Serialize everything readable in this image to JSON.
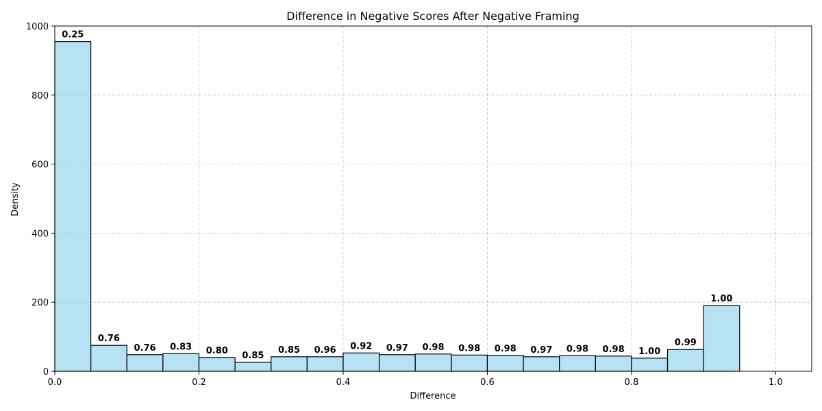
{
  "chart_data": {
    "type": "bar",
    "title": "Difference in Negative Scores After Negative Framing",
    "xlabel": "Difference",
    "ylabel": "Density",
    "xlim": [
      0,
      1.05
    ],
    "ylim": [
      0,
      1000
    ],
    "x_ticks": [
      "0.0",
      "0.2",
      "0.4",
      "0.6",
      "0.8",
      "1.0"
    ],
    "x_tick_values": [
      0,
      0.2,
      0.4,
      0.6,
      0.8,
      1.0
    ],
    "y_ticks": [
      "0",
      "200",
      "400",
      "600",
      "800",
      "1000"
    ],
    "y_tick_values": [
      0,
      200,
      400,
      600,
      800,
      1000
    ],
    "grid": true,
    "bins": [
      {
        "x0": 0.0,
        "x1": 0.05,
        "value": 955,
        "label": "0.25"
      },
      {
        "x0": 0.05,
        "x1": 0.1,
        "value": 75,
        "label": "0.76"
      },
      {
        "x0": 0.1,
        "x1": 0.15,
        "value": 48,
        "label": "0.76"
      },
      {
        "x0": 0.15,
        "x1": 0.2,
        "value": 51,
        "label": "0.83"
      },
      {
        "x0": 0.2,
        "x1": 0.25,
        "value": 40,
        "label": "0.80"
      },
      {
        "x0": 0.25,
        "x1": 0.3,
        "value": 26,
        "label": "0.85"
      },
      {
        "x0": 0.3,
        "x1": 0.35,
        "value": 42,
        "label": "0.85"
      },
      {
        "x0": 0.35,
        "x1": 0.4,
        "value": 42,
        "label": "0.96"
      },
      {
        "x0": 0.4,
        "x1": 0.45,
        "value": 53,
        "label": "0.92"
      },
      {
        "x0": 0.45,
        "x1": 0.5,
        "value": 48,
        "label": "0.97"
      },
      {
        "x0": 0.5,
        "x1": 0.55,
        "value": 50,
        "label": "0.98"
      },
      {
        "x0": 0.55,
        "x1": 0.6,
        "value": 47,
        "label": "0.98"
      },
      {
        "x0": 0.6,
        "x1": 0.65,
        "value": 46,
        "label": "0.98"
      },
      {
        "x0": 0.65,
        "x1": 0.7,
        "value": 42,
        "label": "0.97"
      },
      {
        "x0": 0.7,
        "x1": 0.75,
        "value": 45,
        "label": "0.98"
      },
      {
        "x0": 0.75,
        "x1": 0.8,
        "value": 44,
        "label": "0.98"
      },
      {
        "x0": 0.8,
        "x1": 0.85,
        "value": 38,
        "label": "1.00"
      },
      {
        "x0": 0.85,
        "x1": 0.9,
        "value": 63,
        "label": "0.99"
      },
      {
        "x0": 0.9,
        "x1": 0.95,
        "value": 190,
        "label": "1.00"
      }
    ],
    "colors": {
      "bar_fill": "#87ceeb",
      "bar_edge": "#000000"
    }
  }
}
